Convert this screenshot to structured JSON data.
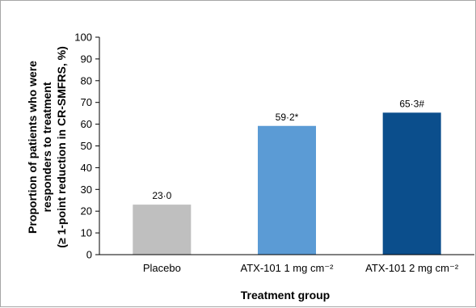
{
  "chart_data": {
    "type": "bar",
    "categories": [
      "Placebo",
      "ATX-101 1 mg cm⁻²",
      "ATX-101 2 mg cm⁻²"
    ],
    "values": [
      23.0,
      59.2,
      65.3
    ],
    "data_labels": [
      "23·0",
      "59·2*",
      "65·3#"
    ],
    "bar_colors": [
      "#bfbfbf",
      "#5b9bd5",
      "#0b4e8c"
    ],
    "title": "",
    "xlabel": "Treatment group",
    "ylabel_lines": [
      "Proportion of patients who were",
      "responders to treatment",
      "(≥ 1-point reduction in CR-SMFRS, %)"
    ],
    "ylim": [
      0,
      100
    ],
    "yticks": [
      0,
      10,
      20,
      30,
      40,
      50,
      60,
      70,
      80,
      90,
      100
    ],
    "grid": false,
    "legend": "none"
  }
}
